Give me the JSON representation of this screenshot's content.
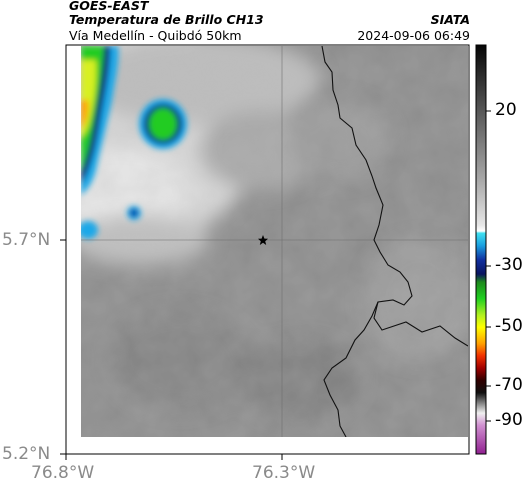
{
  "header": {
    "satellite": "GOES-EAST",
    "product": "Temperatura de Brillo CH13",
    "region": "Vía Medellín - Quibdó 50km",
    "agency": "SIATA",
    "datetime": "2024-09-06 06:49"
  },
  "map": {
    "lat_ticks": [
      "5.7°N",
      "5.2°N"
    ],
    "lon_ticks": [
      "76.8°W",
      "76.3°W"
    ],
    "marker_icon": "star-icon"
  },
  "colorbar": {
    "labels": [
      "20",
      "-30",
      "-50",
      "-70",
      "-90"
    ]
  }
}
